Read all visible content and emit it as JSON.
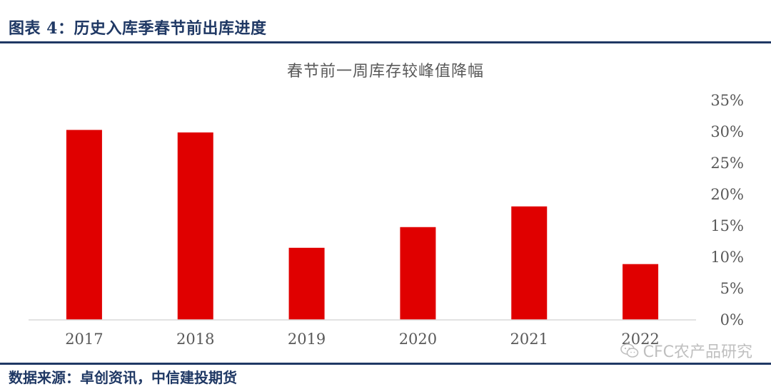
{
  "header": {
    "title": "图表 4：历史入库季春节前出库进度"
  },
  "footer": {
    "source": "数据来源：卓创资讯，中信建投期货"
  },
  "watermark": {
    "text": "CFC农产品研究",
    "icon": "wechat-icon"
  },
  "colors": {
    "bar": "#e00000",
    "heading": "#1f3864",
    "axis_text": "#595959",
    "axis_line": "#d9d9d9"
  },
  "chart_data": {
    "type": "bar",
    "title": "春节前一周库存较峰值降幅",
    "categories": [
      "2017",
      "2018",
      "2019",
      "2020",
      "2021",
      "2022"
    ],
    "values": [
      30.3,
      29.9,
      11.5,
      14.8,
      18.1,
      8.9
    ],
    "ylim": [
      0,
      35
    ],
    "yticks": [
      "0%",
      "5%",
      "10%",
      "15%",
      "20%",
      "25%",
      "30%",
      "35%"
    ],
    "y_axis_side": "right",
    "grid": false,
    "legend": false
  }
}
